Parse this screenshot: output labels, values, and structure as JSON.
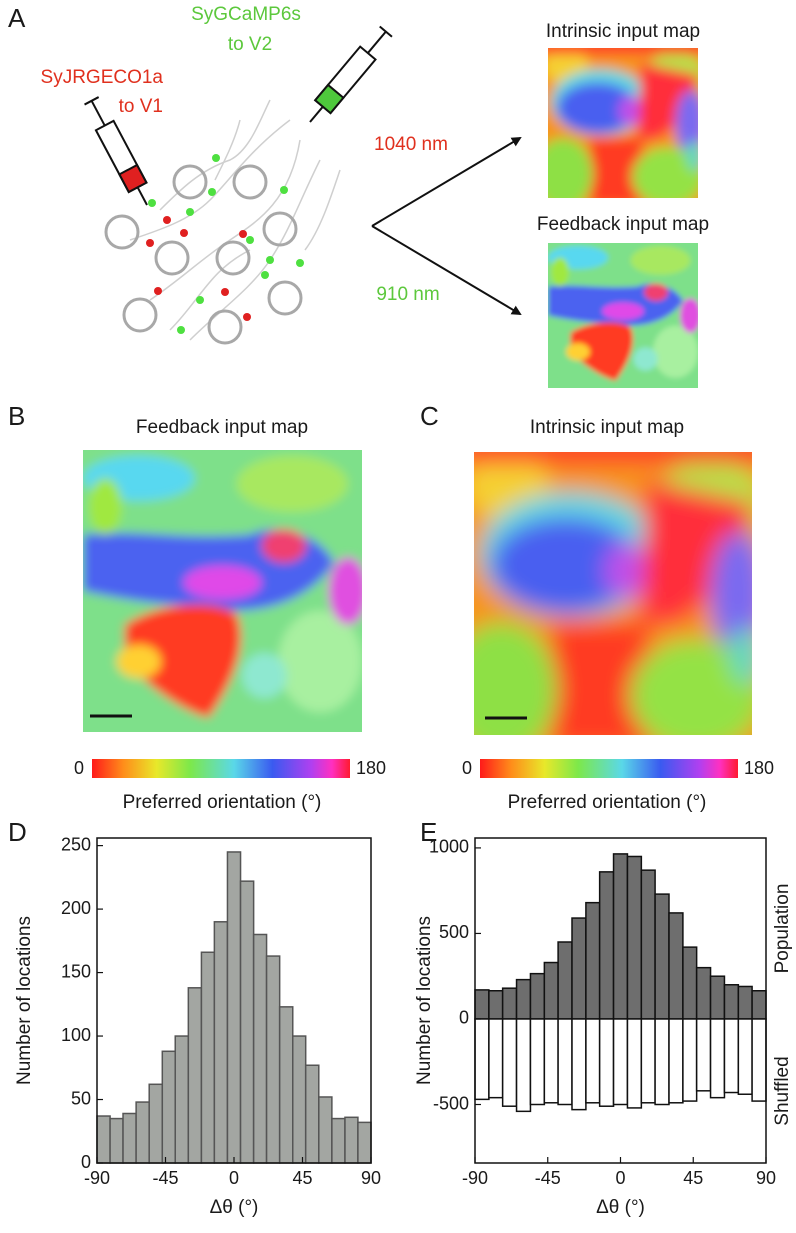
{
  "panels": {
    "a": {
      "letter": "A",
      "green_label": [
        "SyGCaMP6s",
        "to V2"
      ],
      "red_label": [
        "SyJRGECO1a",
        "to V1"
      ],
      "red_wavelength": "1040 nm",
      "green_wavelength": "910 nm",
      "top_map_title": "Intrinsic input map",
      "bottom_map_title": "Feedback input map"
    },
    "b": {
      "letter": "B",
      "title": "Feedback input map",
      "colorbar": {
        "clim": [
          0,
          180
        ],
        "ticks": [
          0,
          180
        ],
        "label": "Preferred orientation (°)"
      }
    },
    "c": {
      "letter": "C",
      "title": "Intrinsic input map",
      "colorbar": {
        "clim": [
          0,
          180
        ],
        "ticks": [
          0,
          180
        ],
        "label": "Preferred orientation (°)"
      }
    }
  },
  "chart_data": [
    {
      "type": "histogram",
      "panel": "D",
      "bins": [
        -90,
        -81.4,
        -72.9,
        -64.3,
        -55.7,
        -47.1,
        -38.6,
        -30,
        -21.4,
        -12.9,
        -4.3,
        4.3,
        12.9,
        21.4,
        30,
        38.6,
        47.1,
        55.7,
        64.3,
        72.9,
        81.4,
        90
      ],
      "values": [
        37,
        35,
        39,
        48,
        62,
        88,
        100,
        138,
        166,
        190,
        245,
        222,
        180,
        163,
        123,
        100,
        77,
        52,
        35,
        36,
        32
      ],
      "color": "#a3a6a2",
      "xlim": [
        -90,
        90
      ],
      "xticks": [
        -90,
        -45,
        0,
        45,
        90
      ],
      "ylim": [
        0,
        256
      ],
      "yticks": [
        0,
        50,
        100,
        150,
        200,
        250
      ],
      "xlabel": "Δθ (°)",
      "ylabel": "Number of locations"
    },
    {
      "type": "histogram",
      "panel": "E",
      "bins": [
        -90,
        -81.4,
        -72.9,
        -64.3,
        -55.7,
        -47.1,
        -38.6,
        -30,
        -21.4,
        -12.9,
        -4.3,
        4.3,
        12.9,
        21.4,
        30,
        38.6,
        47.1,
        55.7,
        64.3,
        72.9,
        81.4,
        90
      ],
      "series": [
        {
          "name": "Population",
          "color": "#6e6e6e",
          "values": [
            170,
            165,
            180,
            230,
            265,
            330,
            450,
            590,
            680,
            860,
            965,
            950,
            870,
            730,
            620,
            420,
            300,
            250,
            200,
            190,
            165
          ]
        },
        {
          "name": "Shuffled",
          "color": "#ffffff",
          "values": [
            -470,
            -460,
            -510,
            -540,
            -500,
            -490,
            -500,
            -530,
            -490,
            -510,
            -500,
            -520,
            -490,
            -500,
            -490,
            -480,
            -420,
            -460,
            -430,
            -440,
            -480
          ]
        }
      ],
      "xlim": [
        -90,
        90
      ],
      "xticks": [
        -90,
        -45,
        0,
        45,
        90
      ],
      "ylim": [
        -842,
        1058
      ],
      "yticks": [
        -500,
        0,
        500,
        1000
      ],
      "xlabel": "Δθ (°)",
      "ylabel": "Number of locations"
    }
  ]
}
